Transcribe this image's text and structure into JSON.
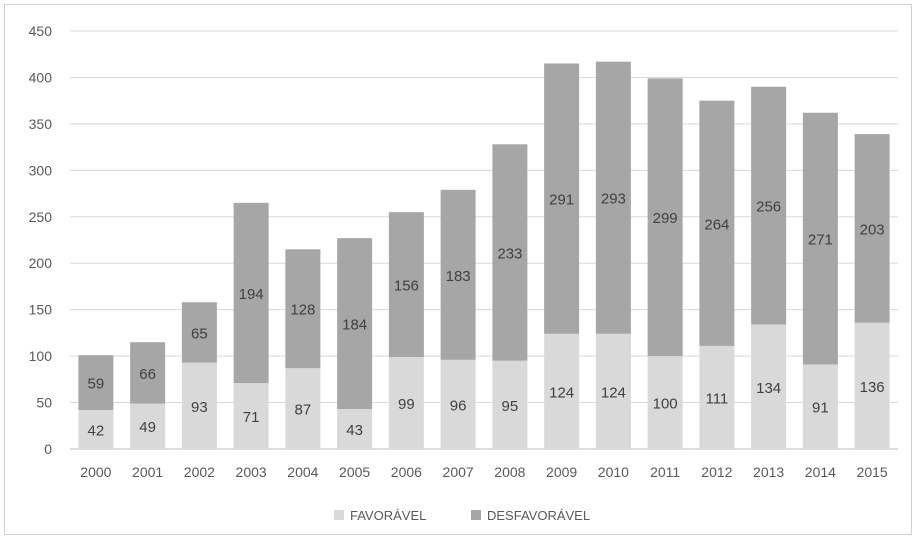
{
  "chart_data": {
    "type": "bar",
    "stacked": true,
    "categories": [
      "2000",
      "2001",
      "2002",
      "2003",
      "2004",
      "2005",
      "2006",
      "2007",
      "2008",
      "2009",
      "2010",
      "2011",
      "2012",
      "2013",
      "2014",
      "2015"
    ],
    "series": [
      {
        "name": "FAVORÁVEL",
        "color": "#d9d9d9",
        "values": [
          42,
          49,
          93,
          71,
          87,
          43,
          99,
          96,
          95,
          124,
          124,
          100,
          111,
          134,
          91,
          136
        ]
      },
      {
        "name": "DESFAVORÁVEL",
        "color": "#a6a6a6",
        "values": [
          59,
          66,
          65,
          194,
          128,
          184,
          156,
          183,
          233,
          291,
          293,
          299,
          264,
          256,
          271,
          203
        ]
      }
    ],
    "title": "",
    "xlabel": "",
    "ylabel": "",
    "ylim": [
      0,
      450
    ],
    "yticks": [
      "0",
      "50",
      "100",
      "150",
      "200",
      "250",
      "300",
      "350",
      "400",
      "450"
    ],
    "grid": true,
    "legend": "bottom"
  }
}
